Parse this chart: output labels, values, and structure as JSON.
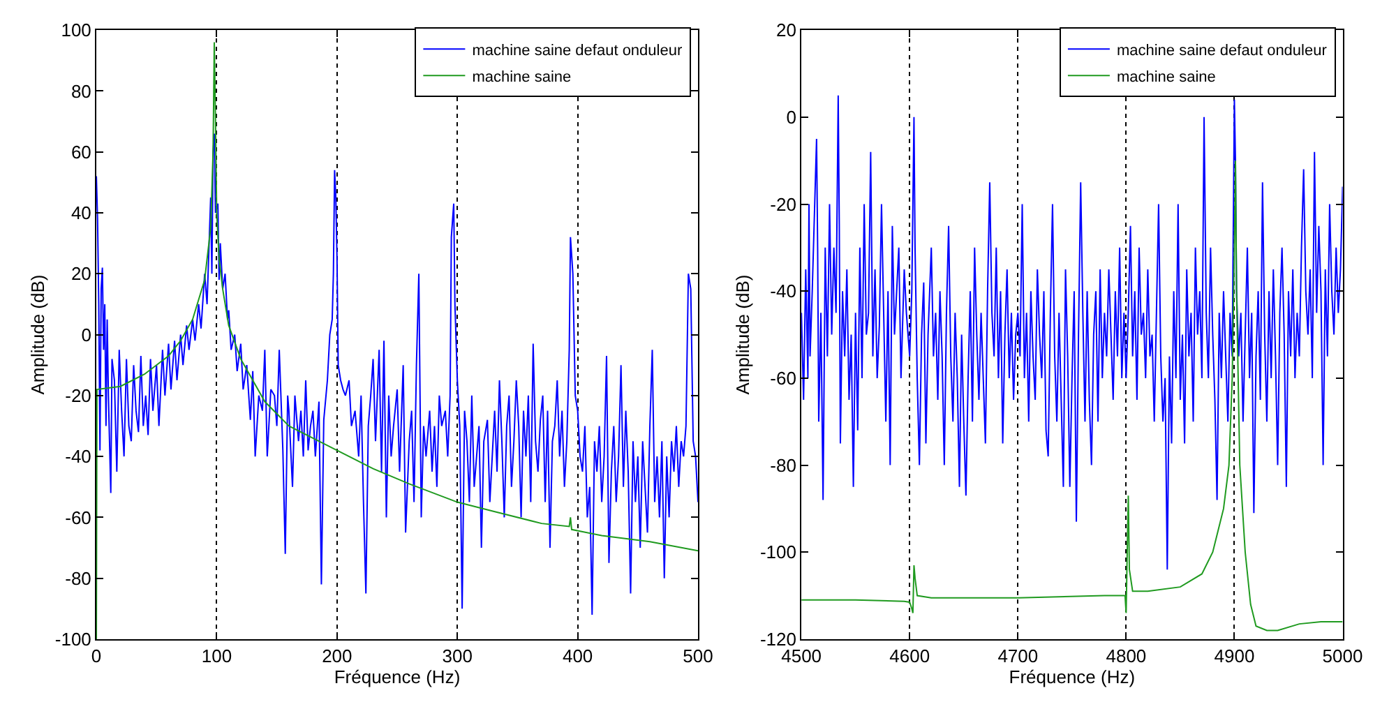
{
  "chart_data": [
    {
      "type": "line",
      "xlabel": "Fréquence (Hz)",
      "ylabel": "Amplitude (dB)",
      "xlim": [
        0,
        500
      ],
      "ylim": [
        -100,
        100
      ],
      "xticks": [
        0,
        100,
        200,
        300,
        400,
        500
      ],
      "yticks": [
        -100,
        -80,
        -60,
        -40,
        -20,
        0,
        20,
        40,
        60,
        80,
        100
      ],
      "grid": "x",
      "legend": "top right",
      "series": [
        {
          "name": "machine saine defaut onduleur",
          "color": "#0000ff",
          "x": [
            0,
            1,
            2,
            3,
            4,
            5,
            6,
            7,
            8,
            9,
            10,
            12,
            13,
            15,
            17,
            19,
            21,
            23,
            25,
            27,
            29,
            31,
            33,
            35,
            37,
            39,
            41,
            43,
            45,
            47,
            50,
            52,
            55,
            57,
            60,
            62,
            65,
            67,
            70,
            72,
            75,
            77,
            80,
            82,
            85,
            87,
            90,
            92,
            95,
            96,
            97,
            98,
            99,
            101,
            102,
            103,
            105,
            107,
            109,
            110,
            112,
            115,
            117,
            120,
            122,
            125,
            128,
            130,
            132,
            135,
            138,
            140,
            142,
            145,
            148,
            150,
            152,
            155,
            157,
            159,
            160,
            163,
            165,
            168,
            170,
            172,
            174,
            176,
            178,
            180,
            182,
            185,
            187,
            189,
            192,
            194,
            196,
            197,
            198,
            199,
            200,
            201,
            203,
            205,
            207,
            210,
            212,
            215,
            218,
            220,
            222,
            224,
            226,
            228,
            230,
            232,
            235,
            237,
            239,
            241,
            243,
            245,
            247,
            250,
            252,
            255,
            257,
            260,
            262,
            264,
            266,
            268,
            270,
            272,
            274,
            277,
            279,
            281,
            283,
            285,
            287,
            290,
            292,
            294,
            295,
            297,
            298,
            300,
            302,
            304,
            306,
            308,
            310,
            312,
            314,
            316,
            318,
            320,
            322,
            325,
            327,
            329,
            331,
            333,
            335,
            337,
            339,
            341,
            343,
            345,
            347,
            349,
            351,
            353,
            355,
            357,
            359,
            361,
            363,
            365,
            367,
            369,
            371,
            373,
            375,
            377,
            379,
            381,
            383,
            385,
            387,
            389,
            391,
            393,
            394,
            396,
            398,
            400,
            402,
            404,
            406,
            408,
            410,
            412,
            414,
            416,
            418,
            420,
            422,
            424,
            426,
            428,
            430,
            432,
            434,
            436,
            438,
            440,
            442,
            444,
            446,
            448,
            450,
            452,
            454,
            456,
            458,
            460,
            462,
            464,
            466,
            468,
            470,
            472,
            474,
            476,
            478,
            480,
            482,
            484,
            486,
            488,
            490,
            492,
            494,
            496,
            498,
            500
          ],
          "values": [
            52,
            38,
            10,
            -38,
            15,
            22,
            -5,
            10,
            -30,
            5,
            -20,
            -52,
            -8,
            -15,
            -45,
            -5,
            -25,
            -40,
            -8,
            -30,
            -35,
            -10,
            -25,
            -32,
            -7,
            -30,
            -20,
            -33,
            -8,
            -25,
            -10,
            -30,
            -5,
            -20,
            -3,
            -18,
            -2,
            -15,
            0,
            -10,
            3,
            -5,
            5,
            -2,
            10,
            2,
            20,
            10,
            45,
            20,
            60,
            66,
            40,
            43,
            18,
            30,
            15,
            20,
            5,
            8,
            -5,
            0,
            -12,
            -3,
            -18,
            -10,
            -28,
            -12,
            -40,
            -20,
            -25,
            -5,
            -40,
            -18,
            -20,
            -30,
            -5,
            -38,
            -72,
            -20,
            -25,
            -50,
            -20,
            -35,
            -25,
            -40,
            -15,
            -38,
            -30,
            -25,
            -40,
            -22,
            -82,
            -28,
            -15,
            0,
            5,
            20,
            54,
            45,
            25,
            -10,
            -15,
            -18,
            -20,
            -15,
            -30,
            -25,
            -40,
            -20,
            -55,
            -85,
            -30,
            -20,
            -8,
            -35,
            -5,
            -45,
            -2,
            -60,
            -20,
            -40,
            -30,
            -18,
            -45,
            -10,
            -65,
            -35,
            -25,
            -55,
            -10,
            20,
            -60,
            -30,
            -40,
            -25,
            -45,
            -30,
            -50,
            -20,
            -30,
            -25,
            -40,
            -20,
            32,
            43,
            10,
            -15,
            -30,
            -90,
            -25,
            -35,
            -55,
            -20,
            -50,
            -40,
            -30,
            -70,
            -35,
            -28,
            -55,
            -40,
            -25,
            -45,
            -15,
            -35,
            -60,
            -30,
            -20,
            -50,
            -35,
            -15,
            -30,
            -60,
            -25,
            -40,
            -20,
            -55,
            -3,
            -35,
            -45,
            -28,
            -20,
            -55,
            -25,
            -70,
            -35,
            -30,
            -15,
            -40,
            -25,
            -50,
            -35,
            -5,
            32,
            20,
            -20,
            -25,
            -40,
            -45,
            -30,
            -60,
            -50,
            -92,
            -35,
            -45,
            -30,
            -55,
            -40,
            -7,
            -75,
            -45,
            -30,
            -55,
            -40,
            -10,
            -50,
            -25,
            -45,
            -85,
            -35,
            -55,
            -40,
            -70,
            -35,
            -50,
            -65,
            -30,
            -5,
            -55,
            -40,
            -60,
            -35,
            -80,
            -40,
            -60,
            -35,
            -45,
            -30,
            -50,
            -35,
            -40,
            -30,
            20,
            15,
            -35,
            -40,
            -55
          ]
        },
        {
          "name": "machine saine",
          "color": "#1f9a1f",
          "x": [
            0,
            0.5,
            20,
            40,
            60,
            70,
            80,
            90,
            95,
            97,
            98,
            99,
            100,
            102,
            105,
            110,
            120,
            140,
            160,
            180,
            200,
            230,
            260,
            300,
            330,
            370,
            393,
            394,
            395,
            420,
            460,
            500
          ],
          "values": [
            -100,
            -18,
            -17,
            -13,
            -7,
            -2,
            5,
            18,
            35,
            60,
            96,
            70,
            40,
            25,
            15,
            3,
            -8,
            -22,
            -30,
            -34,
            -38,
            -44,
            -49,
            -55,
            -58,
            -62,
            -63,
            -60,
            -64,
            -66,
            -68,
            -71
          ]
        }
      ]
    },
    {
      "type": "line",
      "xlabel": "Fréquence (Hz)",
      "ylabel": "Amplitude (dB)",
      "xlim": [
        4500,
        5000
      ],
      "ylim": [
        -120,
        20
      ],
      "xticks": [
        4500,
        4600,
        4700,
        4800,
        4900,
        5000
      ],
      "yticks": [
        -120,
        -100,
        -80,
        -60,
        -40,
        -20,
        0,
        20
      ],
      "grid": "x",
      "legend": "top right",
      "series": [
        {
          "name": "machine saine defaut onduleur",
          "color": "#0000ff",
          "x": [
            4500,
            4502,
            4504,
            4506,
            4507,
            4508,
            4510,
            4514,
            4515,
            4516,
            4518,
            4520,
            4522,
            4524,
            4526,
            4528,
            4530,
            4532,
            4534,
            4535,
            4536,
            4538,
            4540,
            4542,
            4544,
            4546,
            4548,
            4550,
            4552,
            4554,
            4556,
            4558,
            4560,
            4562,
            4564,
            4566,
            4568,
            4570,
            4572,
            4574,
            4576,
            4578,
            4580,
            4582,
            4584,
            4586,
            4590,
            4592,
            4595,
            4597,
            4600,
            4602,
            4604,
            4605,
            4607,
            4609,
            4611,
            4613,
            4615,
            4617,
            4620,
            4622,
            4624,
            4626,
            4628,
            4630,
            4632,
            4634,
            4636,
            4638,
            4640,
            4642,
            4644,
            4646,
            4648,
            4650,
            4652,
            4654,
            4656,
            4658,
            4660,
            4662,
            4664,
            4666,
            4668,
            4670,
            4672,
            4674,
            4676,
            4678,
            4680,
            4682,
            4684,
            4686,
            4688,
            4690,
            4692,
            4694,
            4696,
            4698,
            4700,
            4702,
            4704,
            4706,
            4708,
            4710,
            4712,
            4714,
            4716,
            4718,
            4720,
            4722,
            4724,
            4726,
            4728,
            4730,
            4732,
            4734,
            4736,
            4738,
            4740,
            4742,
            4744,
            4746,
            4748,
            4750,
            4752,
            4754,
            4756,
            4758,
            4760,
            4762,
            4764,
            4766,
            4768,
            4770,
            4772,
            4774,
            4776,
            4778,
            4780,
            4782,
            4784,
            4786,
            4788,
            4790,
            4792,
            4794,
            4796,
            4798,
            4800,
            4802,
            4804,
            4806,
            4808,
            4810,
            4812,
            4814,
            4816,
            4818,
            4820,
            4822,
            4824,
            4826,
            4828,
            4830,
            4832,
            4834,
            4836,
            4838,
            4840,
            4842,
            4844,
            4846,
            4848,
            4850,
            4852,
            4854,
            4856,
            4858,
            4860,
            4862,
            4864,
            4866,
            4868,
            4870,
            4872,
            4874,
            4876,
            4878,
            4880,
            4882,
            4884,
            4886,
            4888,
            4890,
            4892,
            4894,
            4896,
            4898,
            4900,
            4901,
            4902,
            4904,
            4906,
            4908,
            4910,
            4912,
            4914,
            4916,
            4918,
            4920,
            4922,
            4924,
            4926,
            4928,
            4930,
            4932,
            4934,
            4936,
            4938,
            4940,
            4942,
            4944,
            4946,
            4948,
            4950,
            4952,
            4954,
            4956,
            4958,
            4960,
            4962,
            4964,
            4966,
            4968,
            4970,
            4972,
            4974,
            4976,
            4978,
            4980,
            4982,
            4984,
            4986,
            4988,
            4990,
            4992,
            4994,
            4996,
            4998,
            5000
          ],
          "values": [
            -45,
            -65,
            -35,
            -60,
            -20,
            -55,
            -40,
            -5,
            -30,
            -70,
            -45,
            -88,
            -30,
            -55,
            -20,
            -50,
            -30,
            -45,
            5,
            -25,
            -75,
            -40,
            -55,
            -35,
            -65,
            -50,
            -85,
            -45,
            -72,
            -30,
            -60,
            -20,
            -50,
            -45,
            -8,
            -55,
            -35,
            -60,
            -48,
            -20,
            -45,
            -70,
            -40,
            -80,
            -25,
            -50,
            -30,
            -60,
            -35,
            -45,
            -55,
            -40,
            0,
            -30,
            -60,
            -80,
            -50,
            -38,
            -75,
            -50,
            -30,
            -55,
            -45,
            -65,
            -40,
            -55,
            -80,
            -45,
            -25,
            -55,
            -70,
            -45,
            -60,
            -85,
            -50,
            -70,
            -87,
            -60,
            -40,
            -70,
            -30,
            -50,
            -65,
            -45,
            -60,
            -75,
            -40,
            -15,
            -45,
            -55,
            -30,
            -60,
            -40,
            -75,
            -50,
            -35,
            -60,
            -45,
            -65,
            -50,
            -45,
            -55,
            -20,
            -60,
            -45,
            -70,
            -40,
            -55,
            -65,
            -35,
            -50,
            -60,
            -40,
            -72,
            -78,
            -45,
            -20,
            -55,
            -70,
            -45,
            -65,
            -85,
            -35,
            -55,
            -85,
            -60,
            -40,
            -93,
            -50,
            -15,
            -45,
            -70,
            -40,
            -65,
            -80,
            -50,
            -40,
            -70,
            -35,
            -60,
            -45,
            -55,
            -35,
            -50,
            -65,
            -40,
            -55,
            -30,
            -60,
            -45,
            -60,
            -45,
            -25,
            -55,
            -40,
            -65,
            -30,
            -50,
            -45,
            -60,
            -35,
            -55,
            -50,
            -70,
            -45,
            -20,
            -55,
            -70,
            -60,
            -104,
            -55,
            -75,
            -40,
            -60,
            -20,
            -65,
            -50,
            -75,
            -35,
            -55,
            -45,
            -70,
            -30,
            -50,
            -40,
            -60,
            0,
            -45,
            -60,
            -30,
            -50,
            -65,
            -88,
            -45,
            -60,
            -40,
            -55,
            -70,
            -45,
            -55,
            4,
            -10,
            -40,
            -55,
            -45,
            -70,
            -50,
            -30,
            -60,
            -45,
            -91,
            -55,
            -40,
            -65,
            -15,
            -50,
            -70,
            -40,
            -60,
            -35,
            -55,
            -80,
            -45,
            -30,
            -50,
            -85,
            -40,
            -55,
            -35,
            -60,
            -45,
            -55,
            -30,
            -12,
            -40,
            -50,
            -35,
            -60,
            -8,
            -45,
            -25,
            -40,
            -80,
            -35,
            -55,
            -20,
            -40,
            -50,
            -30,
            -45,
            -35,
            -16
          ]
        },
        {
          "name": "machine saine",
          "color": "#1f9a1f",
          "x": [
            4500,
            4550,
            4595,
            4600,
            4602,
            4603,
            4604,
            4605,
            4607,
            4620,
            4700,
            4780,
            4799,
            4800,
            4801,
            4802,
            4803,
            4806,
            4820,
            4850,
            4870,
            4880,
            4890,
            4895,
            4898,
            4900,
            4901,
            4902,
            4905,
            4910,
            4915,
            4920,
            4930,
            4940,
            4960,
            4980,
            5000
          ],
          "values": [
            -111,
            -111,
            -111.3,
            -111.5,
            -113,
            -114,
            -103,
            -106,
            -110,
            -110.5,
            -110.5,
            -110,
            -110,
            -114,
            -100,
            -87,
            -104,
            -109,
            -109,
            -108,
            -105,
            -100,
            -90,
            -80,
            -60,
            -30,
            -10,
            -40,
            -80,
            -100,
            -112,
            -117,
            -118,
            -118,
            -116.5,
            -116,
            -116
          ]
        }
      ]
    }
  ]
}
